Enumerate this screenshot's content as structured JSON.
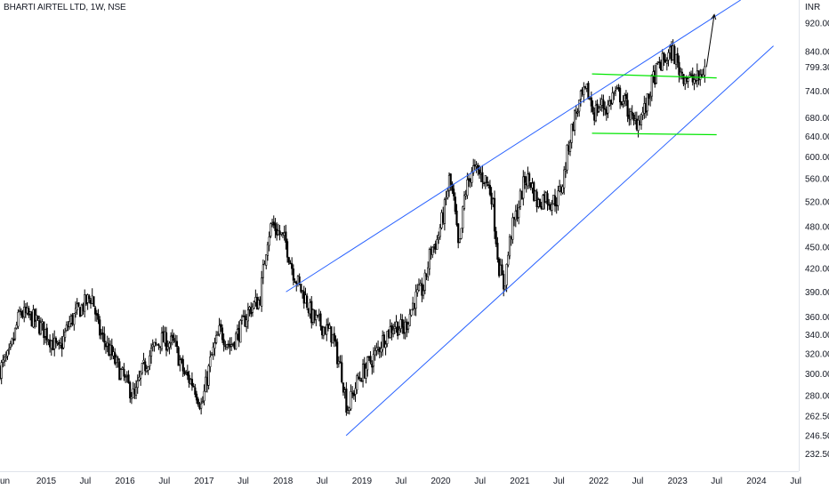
{
  "chart_title": "BHARTI AIRTEL LTD, 1W, NSE",
  "colors": {
    "candle": "#000000",
    "channel": "#2962ff",
    "range": "#00e600",
    "arrow": "#000000",
    "axis_text": "#131722",
    "background": "#ffffff"
  },
  "chart_data": {
    "type": "candlestick",
    "title": "BHARTI AIRTEL LTD, 1W, NSE",
    "ylabel": "INR",
    "y_scale": "log",
    "ylim": [
      220,
      990
    ],
    "xlim": [
      "2014-06-01",
      "2024-07-15"
    ],
    "x_ticks": [
      {
        "label": "un",
        "date": "2014-06-01"
      },
      {
        "label": "2015",
        "date": "2015-01-01"
      },
      {
        "label": "Jul",
        "date": "2015-07-01"
      },
      {
        "label": "2016",
        "date": "2016-01-01"
      },
      {
        "label": "Jul",
        "date": "2016-07-01"
      },
      {
        "label": "2017",
        "date": "2017-01-01"
      },
      {
        "label": "Jul",
        "date": "2017-07-01"
      },
      {
        "label": "2018",
        "date": "2018-01-01"
      },
      {
        "label": "Jul",
        "date": "2018-07-01"
      },
      {
        "label": "2019",
        "date": "2019-01-01"
      },
      {
        "label": "Jul",
        "date": "2019-07-01"
      },
      {
        "label": "2020",
        "date": "2020-01-01"
      },
      {
        "label": "Jul",
        "date": "2020-07-01"
      },
      {
        "label": "2021",
        "date": "2021-01-01"
      },
      {
        "label": "Jul",
        "date": "2021-07-01"
      },
      {
        "label": "2022",
        "date": "2022-01-01"
      },
      {
        "label": "Jul",
        "date": "2022-07-01"
      },
      {
        "label": "2023",
        "date": "2023-01-01"
      },
      {
        "label": "Jul",
        "date": "2023-07-01"
      },
      {
        "label": "2024",
        "date": "2024-01-01"
      },
      {
        "label": "Jul",
        "date": "2024-07-01"
      }
    ],
    "y_ticks": [
      {
        "label": "920.00",
        "value": 920
      },
      {
        "label": "840.00",
        "value": 840
      },
      {
        "label": "740.00",
        "value": 740
      },
      {
        "label": "680.00",
        "value": 680
      },
      {
        "label": "640.00",
        "value": 640
      },
      {
        "label": "600.00",
        "value": 600
      },
      {
        "label": "560.00",
        "value": 560
      },
      {
        "label": "520.00",
        "value": 520
      },
      {
        "label": "480.00",
        "value": 480
      },
      {
        "label": "450.00",
        "value": 450
      },
      {
        "label": "420.00",
        "value": 420
      },
      {
        "label": "390.00",
        "value": 390
      },
      {
        "label": "360.00",
        "value": 360
      },
      {
        "label": "340.00",
        "value": 340
      },
      {
        "label": "320.00",
        "value": 320
      },
      {
        "label": "300.00",
        "value": 300
      },
      {
        "label": "280.00",
        "value": 280
      },
      {
        "label": "262.50",
        "value": 262.5
      },
      {
        "label": "246.50",
        "value": 246.5
      },
      {
        "label": "232.50",
        "value": 232.5
      }
    ],
    "last_price": {
      "label": "799.30",
      "value": 799.3
    },
    "price_path": [
      [
        "2014-06-01",
        305
      ],
      [
        "2014-07-15",
        318
      ],
      [
        "2014-09-01",
        365
      ],
      [
        "2014-11-01",
        358
      ],
      [
        "2015-01-01",
        342
      ],
      [
        "2015-03-01",
        322
      ],
      [
        "2015-04-15",
        352
      ],
      [
        "2015-06-01",
        368
      ],
      [
        "2015-08-01",
        385
      ],
      [
        "2015-09-01",
        345
      ],
      [
        "2015-11-01",
        318
      ],
      [
        "2015-12-15",
        300
      ],
      [
        "2016-02-15",
        278
      ],
      [
        "2016-03-15",
        300
      ],
      [
        "2016-05-01",
        322
      ],
      [
        "2016-06-15",
        335
      ],
      [
        "2016-08-15",
        330
      ],
      [
        "2016-10-01",
        300
      ],
      [
        "2016-11-15",
        290
      ],
      [
        "2016-12-20",
        270
      ],
      [
        "2017-02-01",
        315
      ],
      [
        "2017-03-15",
        345
      ],
      [
        "2017-05-01",
        328
      ],
      [
        "2017-06-15",
        345
      ],
      [
        "2017-08-01",
        370
      ],
      [
        "2017-09-15",
        380
      ],
      [
        "2017-10-20",
        462
      ],
      [
        "2017-11-10",
        485
      ],
      [
        "2017-12-15",
        470
      ],
      [
        "2018-01-15",
        455
      ],
      [
        "2018-02-15",
        418
      ],
      [
        "2018-03-15",
        398
      ],
      [
        "2018-04-15",
        382
      ],
      [
        "2018-05-15",
        360
      ],
      [
        "2018-07-01",
        350
      ],
      [
        "2018-08-15",
        340
      ],
      [
        "2018-10-01",
        300
      ],
      [
        "2018-10-25",
        268
      ],
      [
        "2018-12-15",
        295
      ],
      [
        "2019-01-15",
        305
      ],
      [
        "2019-03-01",
        318
      ],
      [
        "2019-04-15",
        338
      ],
      [
        "2019-06-01",
        352
      ],
      [
        "2019-07-15",
        345
      ],
      [
        "2019-09-01",
        380
      ],
      [
        "2019-10-15",
        395
      ],
      [
        "2019-11-15",
        445
      ],
      [
        "2019-12-15",
        460
      ],
      [
        "2020-01-20",
        510
      ],
      [
        "2020-02-10",
        560
      ],
      [
        "2020-03-01",
        520
      ],
      [
        "2020-03-25",
        440
      ],
      [
        "2020-04-20",
        530
      ],
      [
        "2020-05-25",
        578
      ],
      [
        "2020-06-20",
        570
      ],
      [
        "2020-07-25",
        560
      ],
      [
        "2020-08-25",
        530
      ],
      [
        "2020-09-25",
        425
      ],
      [
        "2020-10-20",
        395
      ],
      [
        "2020-11-20",
        470
      ],
      [
        "2020-12-20",
        505
      ],
      [
        "2021-01-25",
        560
      ],
      [
        "2021-02-20",
        555
      ],
      [
        "2021-03-25",
        515
      ],
      [
        "2021-04-25",
        530
      ],
      [
        "2021-05-25",
        520
      ],
      [
        "2021-06-25",
        525
      ],
      [
        "2021-07-20",
        555
      ],
      [
        "2021-08-15",
        625
      ],
      [
        "2021-09-10",
        680
      ],
      [
        "2021-10-10",
        720
      ],
      [
        "2021-11-10",
        740
      ],
      [
        "2021-12-10",
        690
      ],
      [
        "2022-01-10",
        710
      ],
      [
        "2022-02-10",
        700
      ],
      [
        "2022-03-10",
        735
      ],
      [
        "2022-04-10",
        730
      ],
      [
        "2022-05-10",
        705
      ],
      [
        "2022-06-10",
        665
      ],
      [
        "2022-07-10",
        680
      ],
      [
        "2022-08-10",
        705
      ],
      [
        "2022-09-10",
        770
      ],
      [
        "2022-10-10",
        805
      ],
      [
        "2022-11-10",
        822
      ],
      [
        "2022-12-10",
        840
      ],
      [
        "2023-01-10",
        790
      ],
      [
        "2023-02-10",
        775
      ],
      [
        "2023-03-10",
        765
      ],
      [
        "2023-04-10",
        770
      ],
      [
        "2023-05-10",
        799.3
      ]
    ],
    "annotations": {
      "channel_lower": [
        [
          "2018-10-20",
          246.5
        ],
        [
          "2024-03-20",
          855
        ]
      ],
      "channel_upper": [
        [
          "2018-01-15",
          390
        ],
        [
          "2023-10-20",
          990
        ]
      ],
      "support_resistance_upper": [
        [
          "2021-12-01",
          782
        ],
        [
          "2023-07-01",
          772
        ]
      ],
      "support_resistance_lower": [
        [
          "2021-12-01",
          647
        ],
        [
          "2023-07-01",
          644
        ]
      ],
      "forecast_arrow": [
        [
          "2023-05-15",
          799.3
        ],
        [
          "2023-06-20",
          945
        ]
      ]
    }
  }
}
